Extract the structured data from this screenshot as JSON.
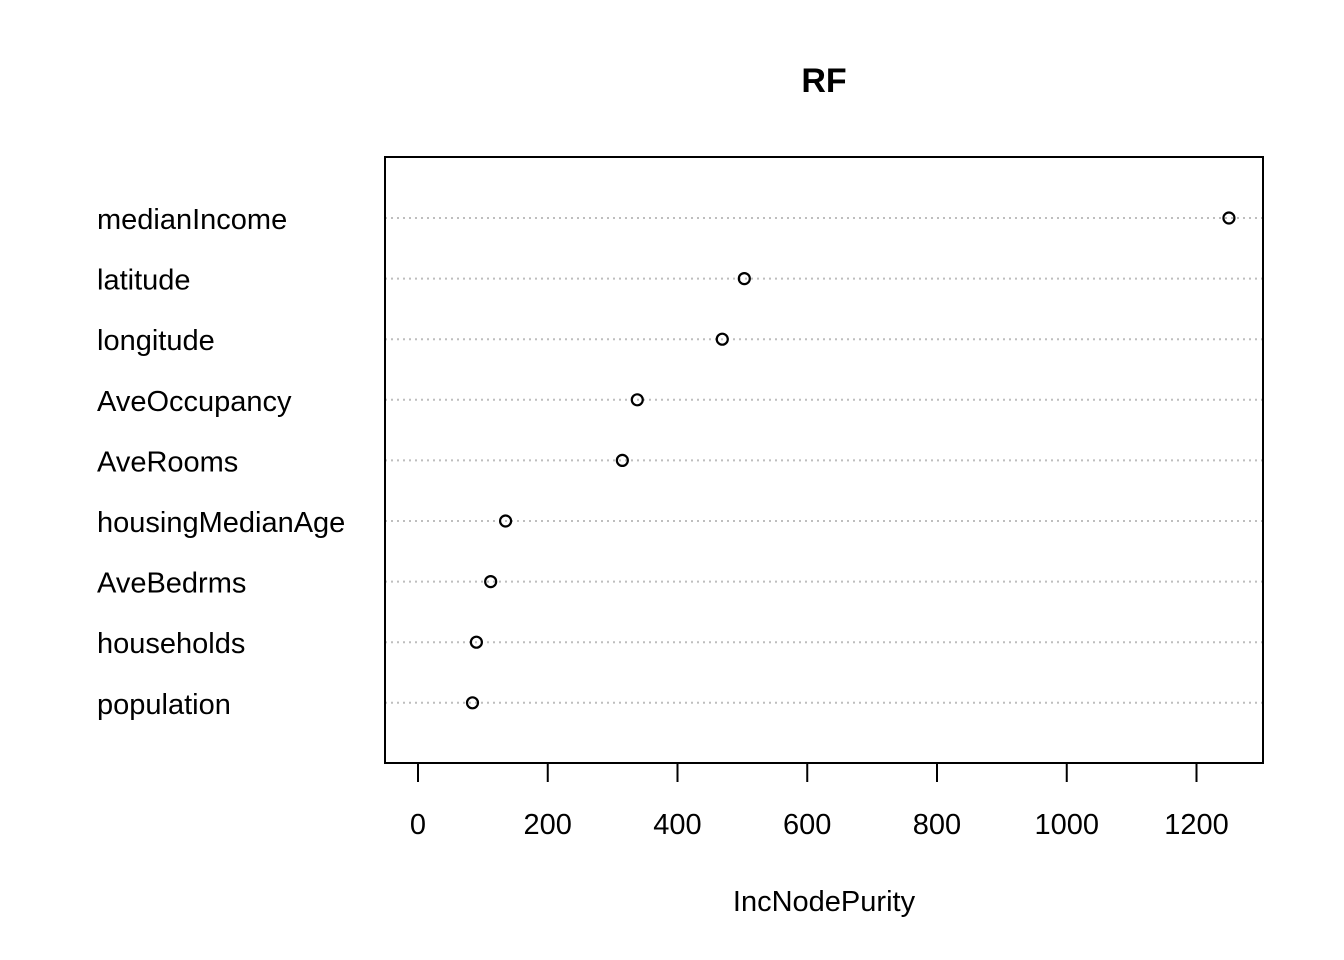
{
  "chart_data": {
    "type": "scatter",
    "subtype": "dotchart",
    "title": "RF",
    "xlabel": "IncNodePurity",
    "ylabel": "",
    "xlim": [
      -50,
      1300
    ],
    "xticks": [
      0,
      200,
      400,
      600,
      800,
      1000,
      1200
    ],
    "xtick_labels": [
      "0",
      "200",
      "400",
      "600",
      "800",
      "1000",
      "1200"
    ],
    "categories": [
      "medianIncome",
      "latitude",
      "longitude",
      "AveOccupancy",
      "AveRooms",
      "housingMedianAge",
      "AveBedrms",
      "households",
      "population"
    ],
    "values": [
      1250,
      503,
      469,
      338,
      315,
      135,
      112,
      90,
      84
    ],
    "grid": "dotted horizontal lines per category",
    "marker": "open circle"
  }
}
